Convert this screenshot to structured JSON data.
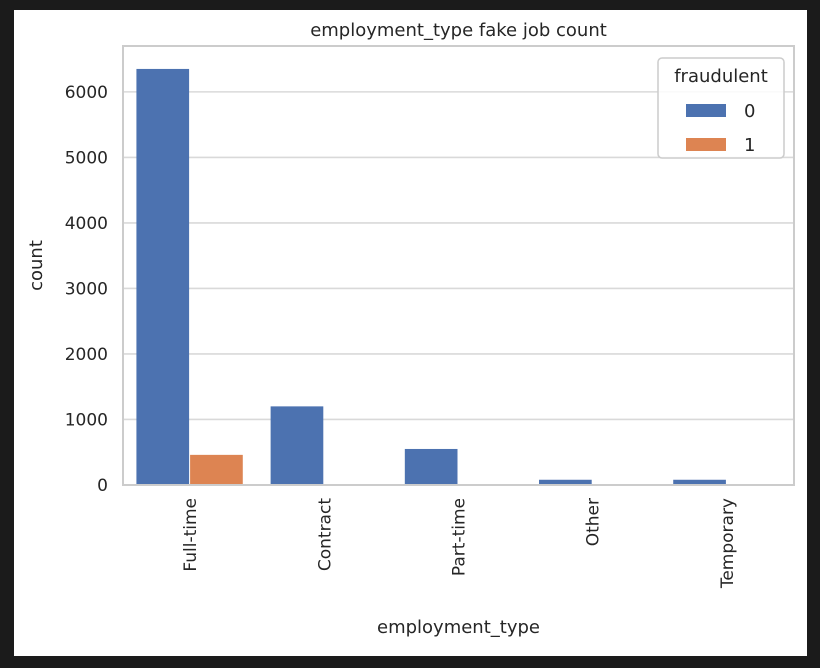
{
  "chart_data": {
    "type": "bar",
    "title": "employment_type fake job count",
    "xlabel": "employment_type",
    "ylabel": "count",
    "categories": [
      "Full-time",
      "Contract",
      "Part-time",
      "Other",
      "Temporary"
    ],
    "series": [
      {
        "name": "0",
        "values": [
          6350,
          1200,
          550,
          80,
          80
        ],
        "color": "#4c72b0"
      },
      {
        "name": "1",
        "values": [
          460,
          5,
          5,
          5,
          5
        ],
        "color": "#dd8452"
      }
    ],
    "ylim": [
      0,
      6700
    ],
    "yticks": [
      0,
      1000,
      2000,
      3000,
      4000,
      5000,
      6000
    ],
    "legend": {
      "title": "fraudulent",
      "placement": "top-right"
    },
    "grid": true,
    "colors": {
      "grid": "#d9d9d9",
      "axes_edge": "#cccccc",
      "background": "#ffffff",
      "frame": "#1b1b1b"
    }
  }
}
